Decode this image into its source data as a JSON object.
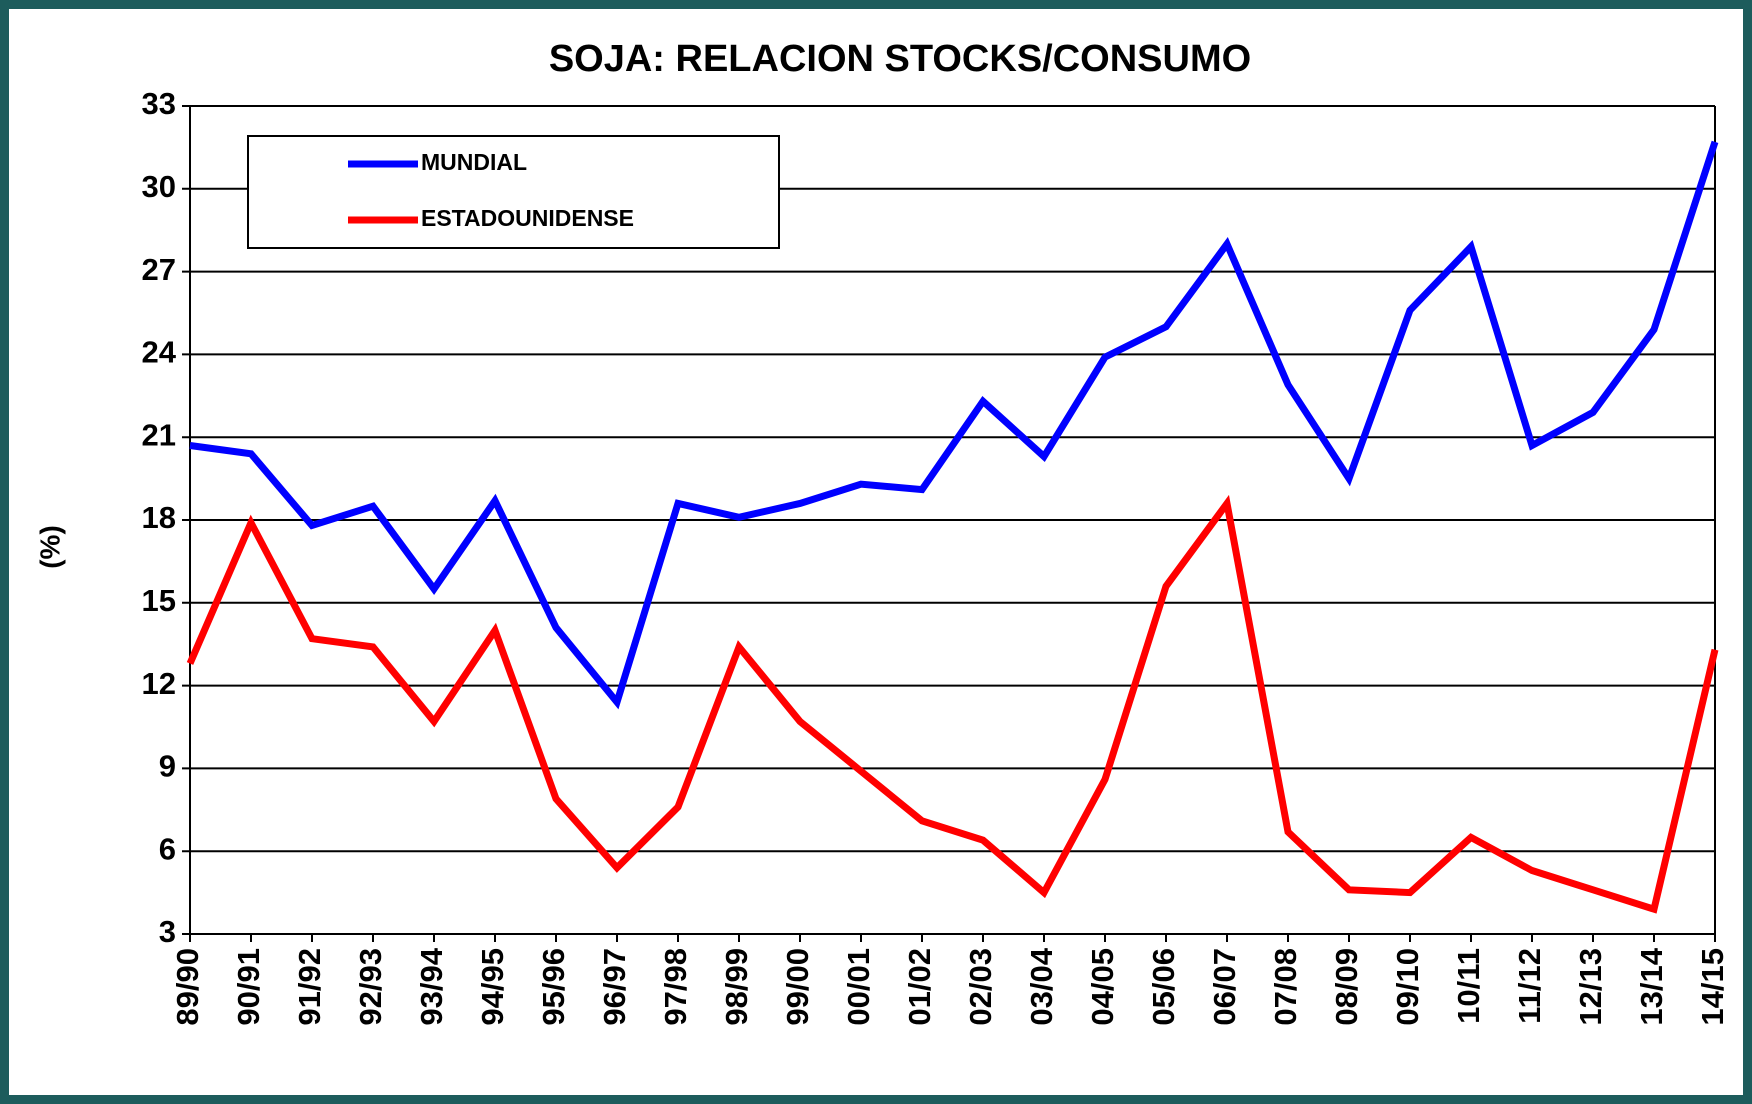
{
  "chart_data": {
    "type": "line",
    "title": "SOJA: RELACION STOCKS/CONSUMO",
    "y_label": "(%)",
    "categories": [
      "89/90",
      "90/91",
      "91/92",
      "92/93",
      "93/94",
      "94/95",
      "95/96",
      "96/97",
      "97/98",
      "98/99",
      "99/00",
      "00/01",
      "01/02",
      "02/03",
      "03/04",
      "04/05",
      "05/06",
      "06/07",
      "07/08",
      "08/09",
      "09/10",
      "10/11",
      "11/12",
      "12/13",
      "13/14",
      "14/15"
    ],
    "series": [
      {
        "name": "MUNDIAL",
        "color": "#0000ff",
        "values": [
          20.7,
          20.4,
          17.8,
          18.5,
          15.5,
          18.7,
          14.1,
          11.4,
          18.6,
          18.1,
          18.6,
          19.3,
          19.1,
          22.3,
          20.3,
          23.9,
          25.0,
          28.0,
          22.9,
          19.5,
          25.6,
          27.9,
          20.7,
          21.9,
          24.9,
          31.7
        ]
      },
      {
        "name": "ESTADOUNIDENSE",
        "color": "#ff0000",
        "values": [
          12.8,
          17.9,
          13.7,
          13.4,
          10.7,
          14.0,
          7.9,
          5.4,
          7.6,
          13.4,
          10.7,
          8.9,
          7.1,
          6.4,
          4.5,
          8.6,
          15.6,
          18.6,
          6.7,
          4.6,
          4.5,
          6.5,
          5.3,
          4.6,
          3.9,
          13.3
        ]
      }
    ],
    "ylim": [
      3,
      33
    ],
    "yticks": [
      3,
      6,
      9,
      12,
      15,
      18,
      21,
      24,
      27,
      30,
      33
    ],
    "grid": true,
    "legend": "upper-left"
  }
}
